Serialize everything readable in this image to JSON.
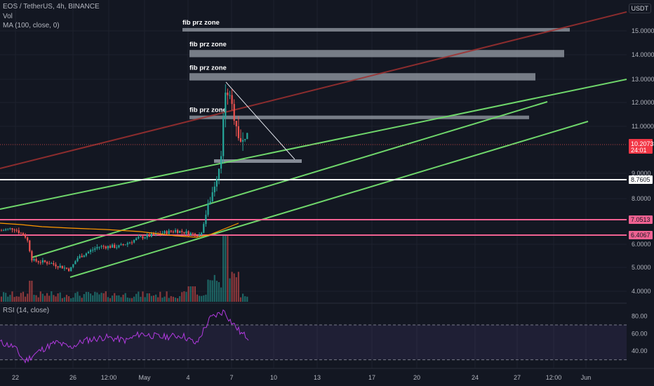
{
  "header": {
    "symbol_line": "EOS / TetherUS, 4h, BINANCE",
    "volume_label": "Vol",
    "ma_label": "MA (100, close, 0)",
    "rsi_label": "RSI (14, close)",
    "currency": "USDT"
  },
  "colors": {
    "background": "#131722",
    "candle_up": "#26a69a",
    "candle_down": "#ef5350",
    "ma_line": "#ff9800",
    "trend_green": "#6fd66b",
    "trend_red": "#a03030",
    "level_pink": "#f06292",
    "level_white": "#ffffff",
    "zone_gray": "#9aa0aa",
    "rsi_line": "#b23ae0",
    "price_tag": "#f23645"
  },
  "chart_data": {
    "type": "candlestick",
    "title": "EOS / TetherUS, 4h, BINANCE",
    "price_axis": {
      "ticks": [
        "4.0000",
        "5.0000",
        "6.0000",
        "8.0000",
        "9.0000",
        "11.0000",
        "12.0000",
        "13.0000",
        "14.0000",
        "15.0000"
      ],
      "range": [
        3.5,
        16.2
      ]
    },
    "time_axis": {
      "ticks": [
        "22",
        "26",
        "12:00",
        "May",
        "4",
        "7",
        "10",
        "13",
        "17",
        "20",
        "24",
        "27",
        "12:00",
        "Jun"
      ]
    },
    "current_price": {
      "value": "10.2073",
      "countdown": "24:01"
    },
    "levels": [
      {
        "price": 8.7605,
        "label": "8.7605",
        "color": "white"
      },
      {
        "price": 7.0513,
        "label": "7.0513",
        "color": "pink"
      },
      {
        "price": 6.4067,
        "label": "6.4067",
        "color": "pink"
      }
    ],
    "fib_zones": [
      {
        "label": "fib prz zone",
        "low": 15.0,
        "high": 15.12
      },
      {
        "label": "fib prz zone",
        "low": 13.9,
        "high": 14.2
      },
      {
        "label": "fib prz zone",
        "low": 12.95,
        "high": 13.25
      },
      {
        "label": "fib prz zone",
        "low": 11.3,
        "high": 11.45
      }
    ],
    "rsi": {
      "label": "RSI (14, close)",
      "ticks": [
        "80.00",
        "60.00",
        "40.00"
      ],
      "upper_band": 70,
      "lower_band": 30
    }
  }
}
